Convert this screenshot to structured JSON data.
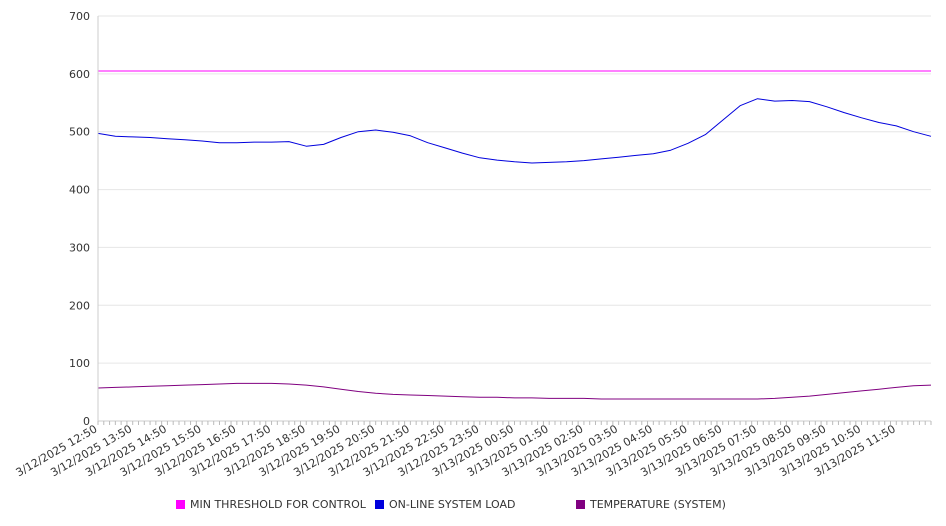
{
  "chart_data": {
    "type": "line",
    "title": "",
    "xlabel": "",
    "ylabel": "",
    "ylim": [
      0,
      700
    ],
    "y_ticks": [
      0,
      100,
      200,
      300,
      400,
      500,
      600,
      700
    ],
    "grid": true,
    "legend_position": "bottom",
    "x_range": [
      "3/12/2025 12:50",
      "3/13/2025 12:50"
    ],
    "x_tick_labels": [
      "3/12/2025 12:50",
      "3/12/2025 13:50",
      "3/12/2025 14:50",
      "3/12/2025 15:50",
      "3/12/2025 16:50",
      "3/12/2025 17:50",
      "3/12/2025 18:50",
      "3/12/2025 19:50",
      "3/12/2025 20:50",
      "3/12/2025 21:50",
      "3/12/2025 22:50",
      "3/12/2025 23:50",
      "3/13/2025 00:50",
      "3/13/2025 01:50",
      "3/13/2025 02:50",
      "3/13/2025 03:50",
      "3/13/2025 04:50",
      "3/13/2025 05:50",
      "3/13/2025 06:50",
      "3/13/2025 07:50",
      "3/13/2025 08:50",
      "3/13/2025 09:50",
      "3/13/2025 10:50",
      "3/13/2025 11:50"
    ],
    "x": [
      "3/12/2025 12:50",
      "3/12/2025 13:20",
      "3/12/2025 13:50",
      "3/12/2025 14:20",
      "3/12/2025 14:50",
      "3/12/2025 15:20",
      "3/12/2025 15:50",
      "3/12/2025 16:20",
      "3/12/2025 16:50",
      "3/12/2025 17:20",
      "3/12/2025 17:50",
      "3/12/2025 18:20",
      "3/12/2025 18:50",
      "3/12/2025 19:20",
      "3/12/2025 19:50",
      "3/12/2025 20:20",
      "3/12/2025 20:50",
      "3/12/2025 21:20",
      "3/12/2025 21:50",
      "3/12/2025 22:20",
      "3/12/2025 22:50",
      "3/12/2025 23:20",
      "3/12/2025 23:50",
      "3/13/2025 00:20",
      "3/13/2025 00:50",
      "3/13/2025 01:20",
      "3/13/2025 01:50",
      "3/13/2025 02:20",
      "3/13/2025 02:50",
      "3/13/2025 03:20",
      "3/13/2025 03:50",
      "3/13/2025 04:20",
      "3/13/2025 04:50",
      "3/13/2025 05:20",
      "3/13/2025 05:50",
      "3/13/2025 06:20",
      "3/13/2025 06:50",
      "3/13/2025 07:20",
      "3/13/2025 07:50",
      "3/13/2025 08:20",
      "3/13/2025 08:50",
      "3/13/2025 09:20",
      "3/13/2025 09:50",
      "3/13/2025 10:20",
      "3/13/2025 10:50",
      "3/13/2025 11:20",
      "3/13/2025 11:50",
      "3/13/2025 12:20",
      "3/13/2025 12:50"
    ],
    "series": [
      {
        "name": "MIN THRESHOLD FOR CONTROL",
        "color": "#ff00ff",
        "values": [
          605,
          605,
          605,
          605,
          605,
          605,
          605,
          605,
          605,
          605,
          605,
          605,
          605,
          605,
          605,
          605,
          605,
          605,
          605,
          605,
          605,
          605,
          605,
          605,
          605,
          605,
          605,
          605,
          605,
          605,
          605,
          605,
          605,
          605,
          605,
          605,
          605,
          605,
          605,
          605,
          605,
          605,
          605,
          605,
          605,
          605,
          605,
          605,
          605
        ]
      },
      {
        "name": "ON-LINE SYSTEM LOAD",
        "color": "#0000dd",
        "values": [
          497,
          492,
          491,
          490,
          488,
          486,
          484,
          481,
          481,
          482,
          482,
          483,
          475,
          478,
          490,
          500,
          503,
          499,
          493,
          481,
          472,
          463,
          455,
          451,
          448,
          446,
          447,
          448,
          450,
          453,
          456,
          459,
          462,
          468,
          480,
          495,
          520,
          545,
          557,
          553,
          554,
          552,
          543,
          533,
          524,
          516,
          510,
          500,
          492
        ]
      },
      {
        "name": "TEMPERATURE (SYSTEM)",
        "color": "#800080",
        "values": [
          57,
          58,
          59,
          60,
          61,
          62,
          63,
          64,
          65,
          65,
          65,
          64,
          62,
          59,
          55,
          51,
          48,
          46,
          45,
          44,
          43,
          42,
          41,
          41,
          40,
          40,
          39,
          39,
          39,
          38,
          38,
          38,
          38,
          38,
          38,
          38,
          38,
          38,
          38,
          39,
          41,
          43,
          46,
          49,
          52,
          55,
          58,
          61,
          62
        ]
      }
    ]
  }
}
